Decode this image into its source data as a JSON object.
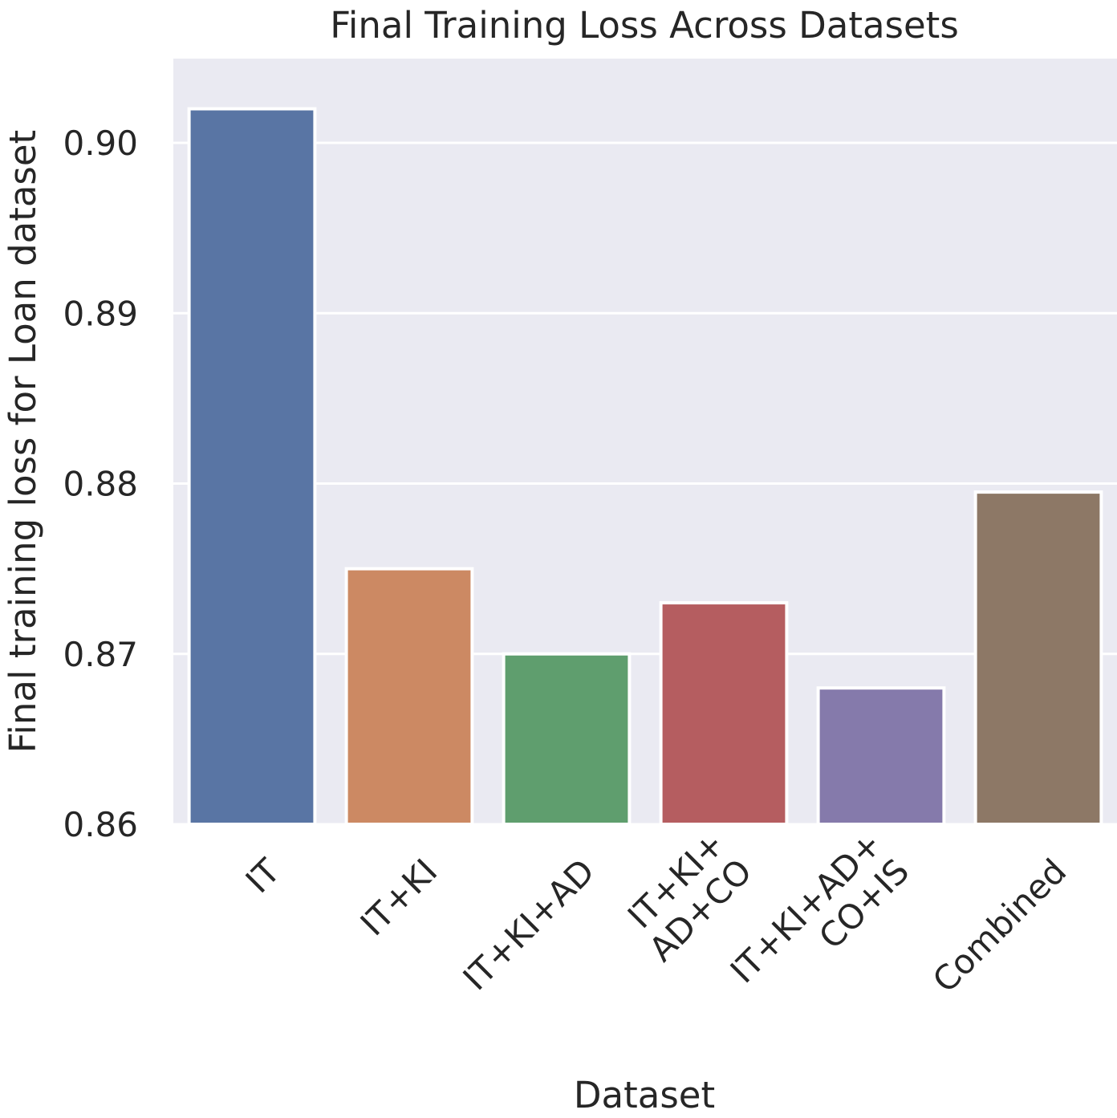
{
  "chart_data": {
    "type": "bar",
    "title": "Final Training Loss Across Datasets",
    "xlabel": "Dataset",
    "ylabel": "Final training loss for Loan dataset",
    "categories": [
      [
        "IT"
      ],
      [
        "IT+KI"
      ],
      [
        "IT+KI+AD"
      ],
      [
        "IT+KI+",
        "AD+CO"
      ],
      [
        "IT+KI+AD+",
        "CO+IS"
      ],
      [
        "Combined"
      ]
    ],
    "values": [
      0.902,
      0.875,
      0.87,
      0.873,
      0.868,
      0.8795
    ],
    "ylim": [
      0.86,
      0.905
    ],
    "yticks": [
      0.86,
      0.87,
      0.88,
      0.89,
      0.9
    ],
    "ytick_labels": [
      "0.86",
      "0.87",
      "0.88",
      "0.89",
      "0.90"
    ],
    "colors": [
      "#5975a4",
      "#cc8963",
      "#5f9e6e",
      "#b55d60",
      "#857aab",
      "#8d7866"
    ],
    "background": "#eaeaf2",
    "grid": true,
    "legend": "none"
  }
}
